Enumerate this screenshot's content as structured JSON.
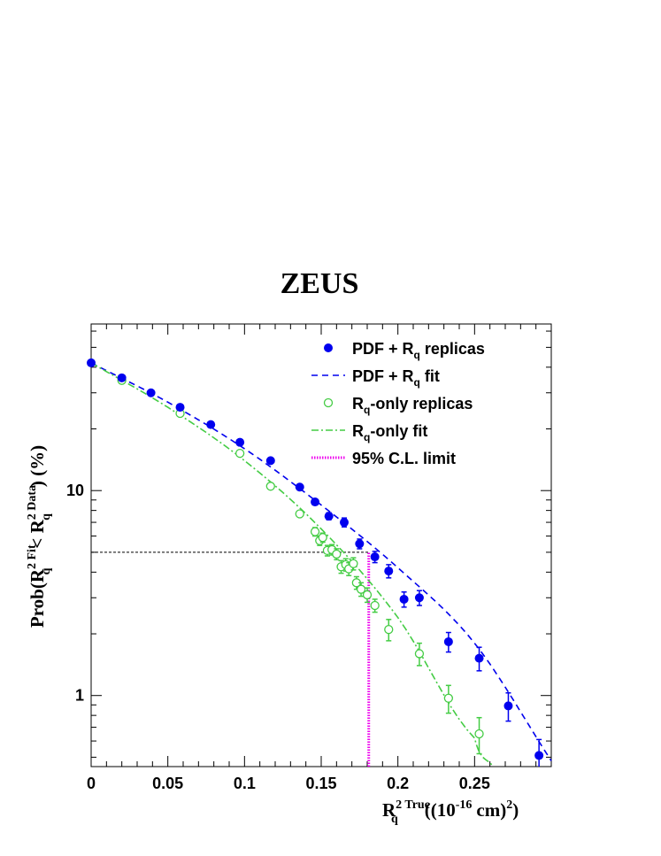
{
  "chart_data": {
    "type": "scatter",
    "title": "ZEUS",
    "xlabel_main": "R",
    "xlabel_sub": "q",
    "xlabel_sup": "2 True",
    "xlabel_tail": "((10",
    "xlabel_exp": "-16",
    "xlabel_tail2": "cm)",
    "xlabel_tail2_sup": "2",
    "xlabel_close": ")",
    "ylabel_prefix": "Prob(R",
    "ylabel_fit_sup": "2 Fit",
    "ylabel_sub": "q",
    "ylabel_mid": "< R",
    "ylabel_data_sup": "2 Data",
    "ylabel_suffix": ") (%)",
    "xlim": [
      0,
      0.3
    ],
    "ylim": [
      0.45,
      65
    ],
    "yscale": "log",
    "xticks": [
      "0",
      "0.05",
      "0.1",
      "0.15",
      "0.2",
      "0.25"
    ],
    "yticks": [
      "1",
      "10"
    ],
    "legend_position": "top-right",
    "legend": [
      {
        "pre": "PDF + R",
        "sub": "q",
        "post": " replicas"
      },
      {
        "pre": "PDF + R",
        "sub": "q",
        "post": " fit"
      },
      {
        "pre": "R",
        "sub": "q",
        "post": "-only replicas"
      },
      {
        "pre": "R",
        "sub": "q",
        "post": "-only fit"
      },
      {
        "pre": "95% C.L. limit",
        "sub": "",
        "post": ""
      }
    ],
    "colors": {
      "pdf": "#0000ee",
      "rq": "#44cc44",
      "cl": "#ee00ee",
      "ref": "#000000"
    },
    "series": [
      {
        "name": "PDF + Rq replicas",
        "points": [
          {
            "x": 0.0,
            "y": 42.0,
            "err": 0.0
          },
          {
            "x": 0.02,
            "y": 35.5,
            "err": 0.0
          },
          {
            "x": 0.039,
            "y": 30.0,
            "err": 0.0
          },
          {
            "x": 0.058,
            "y": 25.5,
            "err": 0.0
          },
          {
            "x": 0.078,
            "y": 21.0,
            "err": 0.0
          },
          {
            "x": 0.097,
            "y": 17.2,
            "err": 0.0
          },
          {
            "x": 0.117,
            "y": 14.0,
            "err": 0.0
          },
          {
            "x": 0.136,
            "y": 10.4,
            "err": 0.0
          },
          {
            "x": 0.146,
            "y": 8.8,
            "err": 0.0
          },
          {
            "x": 0.155,
            "y": 7.5,
            "err": 0.3
          },
          {
            "x": 0.165,
            "y": 7.0,
            "err": 0.35
          },
          {
            "x": 0.175,
            "y": 5.5,
            "err": 0.3
          },
          {
            "x": 0.185,
            "y": 4.75,
            "err": 0.3
          },
          {
            "x": 0.194,
            "y": 4.05,
            "err": 0.3
          },
          {
            "x": 0.204,
            "y": 2.95,
            "err": 0.25
          },
          {
            "x": 0.214,
            "y": 3.0,
            "err": 0.25
          },
          {
            "x": 0.233,
            "y": 1.83,
            "err": 0.2
          },
          {
            "x": 0.253,
            "y": 1.52,
            "err": 0.2
          },
          {
            "x": 0.272,
            "y": 0.89,
            "err": 0.14
          },
          {
            "x": 0.292,
            "y": 0.51,
            "err": 0.1
          }
        ]
      },
      {
        "name": "PDF + Rq fit",
        "x": [
          0.0,
          0.05,
          0.1,
          0.15,
          0.2,
          0.25,
          0.3
        ],
        "y": [
          42.0,
          27.0,
          16.0,
          8.5,
          4.2,
          1.8,
          0.48
        ]
      },
      {
        "name": "Rq-only replicas",
        "points": [
          {
            "x": 0.02,
            "y": 34.5,
            "err": 0.0
          },
          {
            "x": 0.058,
            "y": 23.8,
            "err": 0.0
          },
          {
            "x": 0.097,
            "y": 15.2,
            "err": 0.0
          },
          {
            "x": 0.117,
            "y": 10.5,
            "err": 0.0
          },
          {
            "x": 0.136,
            "y": 7.7,
            "err": 0.0
          },
          {
            "x": 0.146,
            "y": 6.3,
            "err": 0.3
          },
          {
            "x": 0.149,
            "y": 5.7,
            "err": 0.3
          },
          {
            "x": 0.151,
            "y": 5.9,
            "err": 0.3
          },
          {
            "x": 0.154,
            "y": 5.1,
            "err": 0.3
          },
          {
            "x": 0.157,
            "y": 5.15,
            "err": 0.3
          },
          {
            "x": 0.16,
            "y": 4.9,
            "err": 0.3
          },
          {
            "x": 0.163,
            "y": 4.25,
            "err": 0.3
          },
          {
            "x": 0.166,
            "y": 4.35,
            "err": 0.3
          },
          {
            "x": 0.168,
            "y": 4.15,
            "err": 0.3
          },
          {
            "x": 0.171,
            "y": 4.4,
            "err": 0.3
          },
          {
            "x": 0.173,
            "y": 3.55,
            "err": 0.25
          },
          {
            "x": 0.176,
            "y": 3.3,
            "err": 0.25
          },
          {
            "x": 0.18,
            "y": 3.1,
            "err": 0.25
          },
          {
            "x": 0.185,
            "y": 2.75,
            "err": 0.2
          },
          {
            "x": 0.194,
            "y": 2.1,
            "err": 0.25
          },
          {
            "x": 0.214,
            "y": 1.6,
            "err": 0.2
          },
          {
            "x": 0.233,
            "y": 0.97,
            "err": 0.15
          },
          {
            "x": 0.253,
            "y": 0.65,
            "err": 0.13
          }
        ]
      },
      {
        "name": "Rq-only fit",
        "x": [
          0.0,
          0.05,
          0.1,
          0.15,
          0.2,
          0.25,
          0.262
        ],
        "y": [
          42.0,
          25.5,
          14.0,
          6.5,
          2.4,
          0.62,
          0.45
        ]
      },
      {
        "name": "95% C.L. limit",
        "x": [
          0.181,
          0.181
        ],
        "y": [
          0.45,
          5.0
        ]
      }
    ],
    "reference_line": {
      "x": [
        0.0,
        0.181
      ],
      "y": [
        5.0,
        5.0
      ]
    }
  }
}
